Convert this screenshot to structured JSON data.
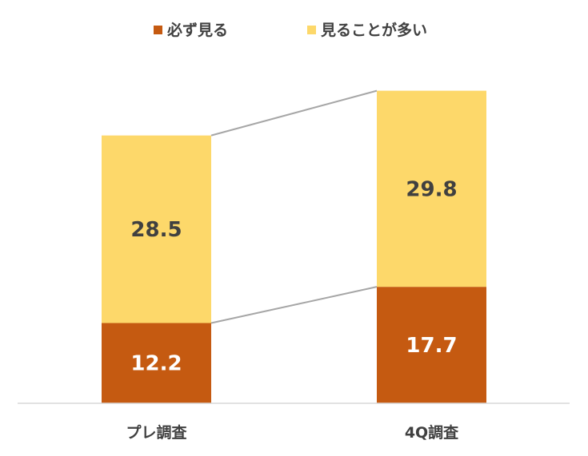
{
  "chart_data": {
    "type": "bar",
    "stacked": true,
    "categories": [
      "プレ調査",
      "4Q調査"
    ],
    "series": [
      {
        "name": "必ず見る",
        "values": [
          12.2,
          17.7
        ],
        "color": "#C55A11",
        "label_color": "#FFFFFF"
      },
      {
        "name": "見ることが多い",
        "values": [
          28.5,
          29.8
        ],
        "color": "#FDD86A",
        "label_color": "#404040"
      }
    ],
    "ylim": [
      0,
      50
    ],
    "grid": false,
    "series_lines": true,
    "legend_position": "top",
    "title": "",
    "xlabel": "",
    "ylabel": ""
  }
}
